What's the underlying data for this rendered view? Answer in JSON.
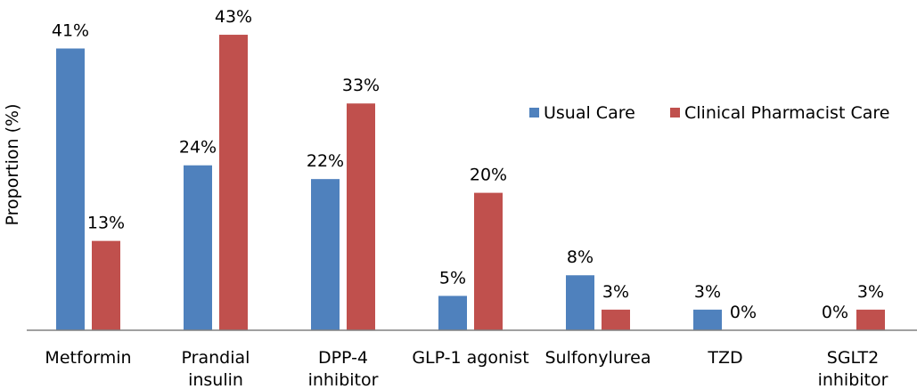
{
  "chart_data": {
    "type": "bar",
    "ylabel": "Proportion (%)",
    "categories": [
      [
        "Metformin"
      ],
      [
        "Prandial",
        "insulin"
      ],
      [
        "DPP-4",
        "inhibitor"
      ],
      [
        "GLP-1 agonist"
      ],
      [
        "Sulfonylurea"
      ],
      [
        "TZD"
      ],
      [
        "SGLT2",
        "inhibitor"
      ]
    ],
    "series": [
      {
        "name": "Usual Care",
        "color": "#4f81bd",
        "values": [
          41,
          24,
          22,
          5,
          8,
          3,
          0
        ],
        "labels": [
          "41%",
          "24%",
          "22%",
          "5%",
          "8%",
          "3%",
          "0%"
        ]
      },
      {
        "name": "Clinical Pharmacist Care",
        "color": "#c0504d",
        "values": [
          13,
          43,
          33,
          20,
          3,
          0,
          3
        ],
        "labels": [
          "13%",
          "43%",
          "33%",
          "20%",
          "3%",
          "0%",
          "3%"
        ]
      }
    ],
    "ylim": [
      0,
      43.7
    ],
    "grid": false,
    "legend_position": "top-right"
  }
}
